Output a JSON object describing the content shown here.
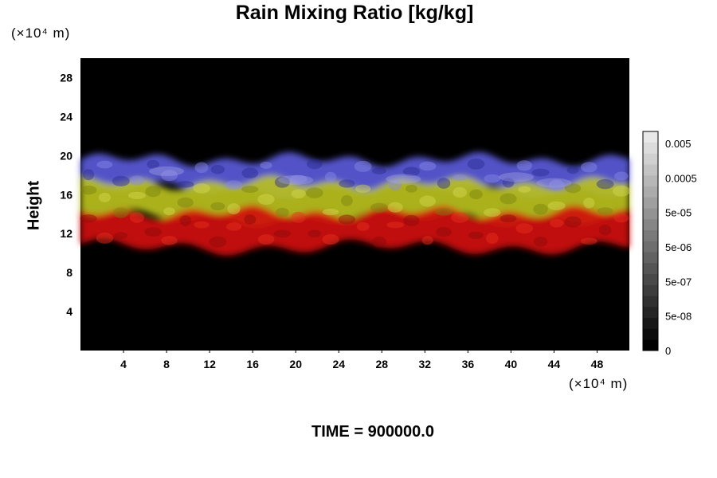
{
  "chart_data": {
    "type": "heatmap",
    "title": "Rain Mixing Ratio [kg/kg]",
    "ylabel": "Height",
    "y_unit": "(×10⁴ m)",
    "x_unit": "(×10⁴ m)",
    "footer": "TIME = 900000.0",
    "xlim": [
      0,
      51
    ],
    "ylim": [
      0,
      30
    ],
    "x_ticks": [
      "4",
      "8",
      "12",
      "16",
      "20",
      "24",
      "28",
      "32",
      "36",
      "40",
      "44",
      "48"
    ],
    "y_ticks": [
      "4",
      "8",
      "12",
      "16",
      "20",
      "24",
      "28"
    ],
    "colorbar": {
      "labels": [
        "0.005",
        "0.0005",
        "5e-05",
        "5e-06",
        "5e-07",
        "5e-08",
        "0"
      ],
      "levels": 20
    },
    "layers": [
      {
        "color": "#5a5ad8",
        "y_range": [
          16.5,
          19.6
        ]
      },
      {
        "color": "#b8c020",
        "y_range": [
          13.6,
          17.2
        ]
      },
      {
        "color": "#d01010",
        "y_range": [
          10.6,
          14.2
        ]
      }
    ],
    "colors": {
      "background": "#000000",
      "red": "#d01010",
      "yellow": "#b8c020",
      "blue": "#5a5ad8"
    }
  }
}
